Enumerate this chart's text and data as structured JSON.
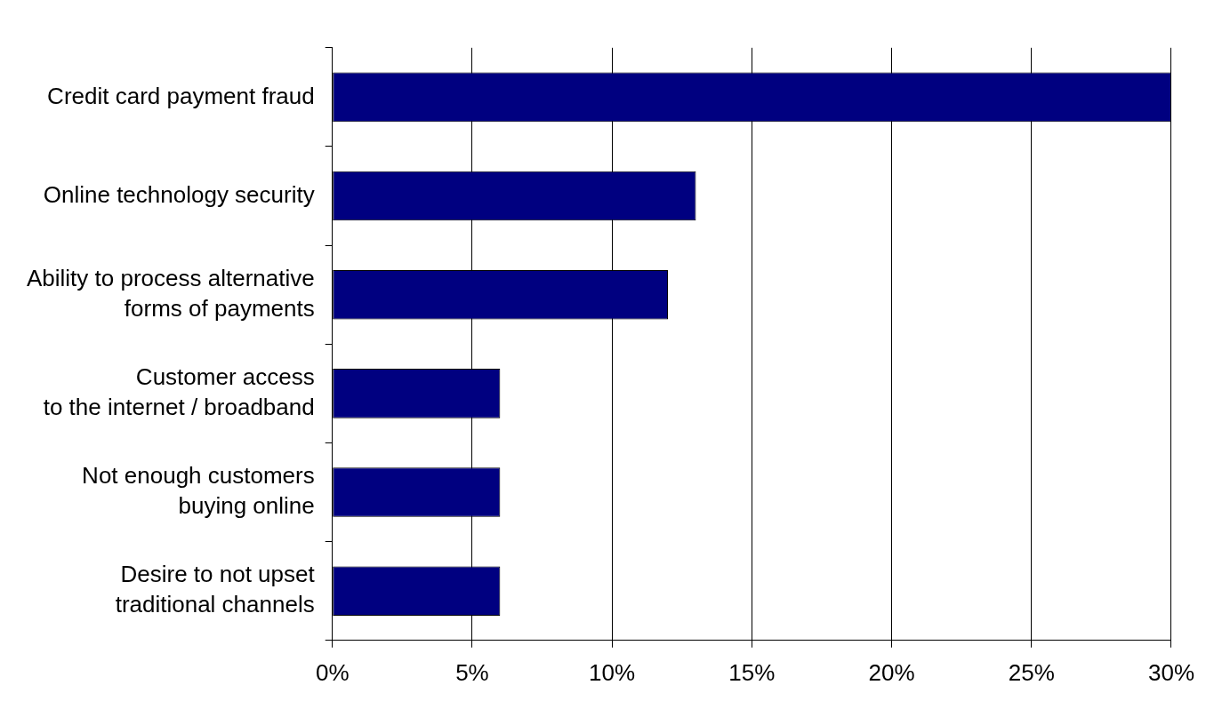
{
  "chart_data": {
    "type": "bar",
    "orientation": "horizontal",
    "categories": [
      "Credit card payment fraud",
      "Online technology security",
      "Ability to process alternative\nforms of payments",
      "Customer access\nto the internet / broadband",
      "Not enough customers\nbuying online",
      "Desire to not upset\ntraditional channels"
    ],
    "values": [
      30,
      13,
      12,
      6,
      6,
      6
    ],
    "color": "#000080",
    "xlim": [
      0,
      30
    ],
    "xticks": [
      {
        "value": 0,
        "label": "0%"
      },
      {
        "value": 5,
        "label": "5%"
      },
      {
        "value": 10,
        "label": "10%"
      },
      {
        "value": 15,
        "label": "15%"
      },
      {
        "value": 20,
        "label": "20%"
      },
      {
        "value": 25,
        "label": "25%"
      },
      {
        "value": 30,
        "label": "30%"
      }
    ],
    "grid": "x",
    "legend": false
  }
}
